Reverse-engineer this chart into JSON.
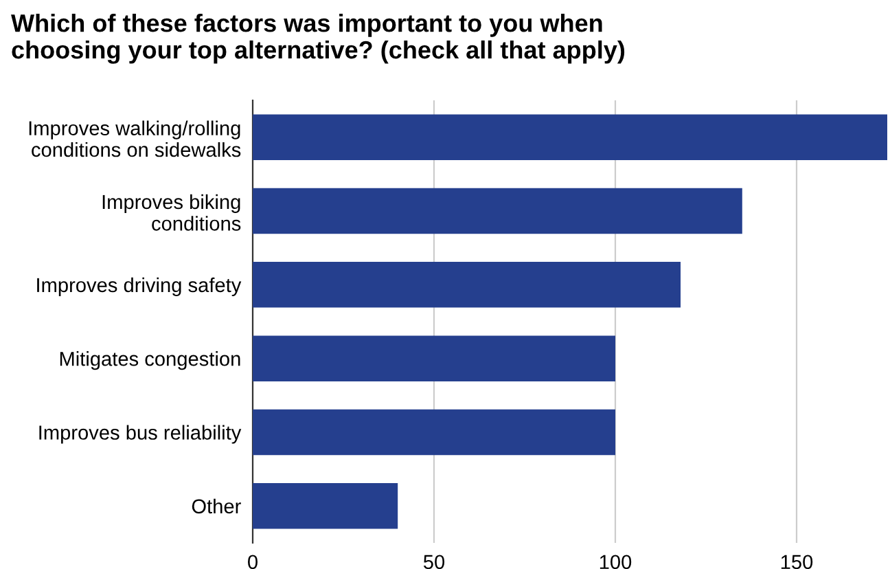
{
  "chart_data": {
    "type": "bar",
    "orientation": "horizontal",
    "title": "Which of these factors was important to you when\nchoosing your top alternative? (check all that apply)",
    "categories": [
      "Improves walking/rolling\nconditions on sidewalks",
      "Improves biking\nconditions",
      "Improves driving safety",
      "Mitigates congestion",
      "Improves bus reliability",
      "Other"
    ],
    "values": [
      175,
      135,
      118,
      100,
      100,
      40
    ],
    "color": "#253f8e",
    "xlim": [
      0,
      175
    ],
    "xticks": [
      0,
      50,
      100,
      150
    ],
    "grid": "x"
  }
}
